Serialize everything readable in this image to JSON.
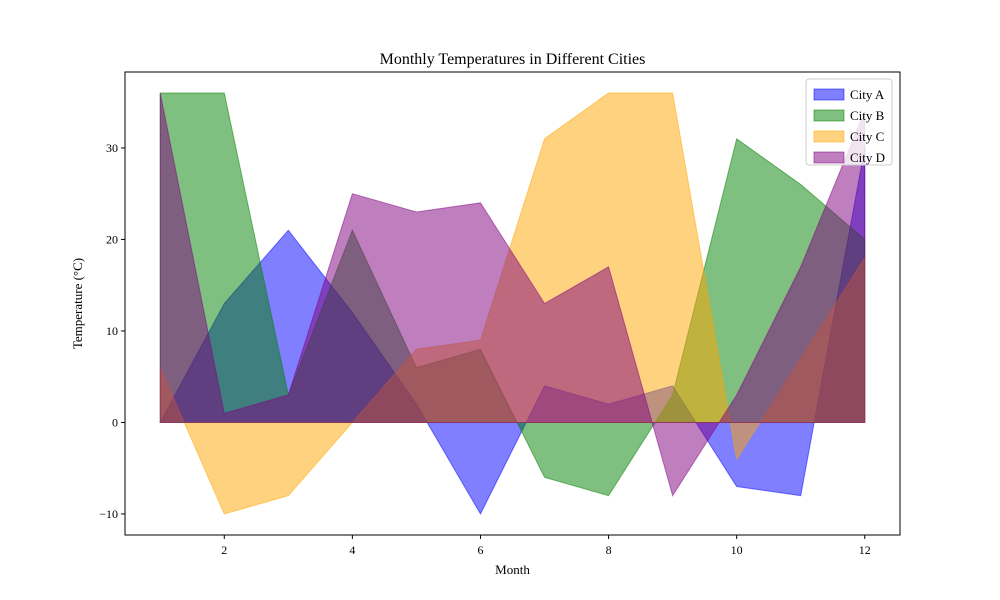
{
  "chart_data": {
    "type": "area",
    "title": "Monthly Temperatures in Different Cities",
    "xlabel": "Month",
    "ylabel": "Temperature (°C)",
    "x": [
      1,
      2,
      3,
      4,
      5,
      6,
      7,
      8,
      9,
      10,
      11,
      12
    ],
    "xlim": [
      0.45,
      12.55
    ],
    "ylim": [
      -12.3,
      38.3
    ],
    "xticks": [
      2,
      4,
      6,
      8,
      10,
      12
    ],
    "yticks": [
      -10,
      0,
      10,
      20,
      30
    ],
    "grid": false,
    "legend_position": "upper right",
    "series": [
      {
        "name": "City A",
        "color": "#0000ff",
        "values": [
          0,
          13,
          21,
          12,
          2,
          -10,
          4,
          2,
          4,
          -7,
          -8,
          30
        ]
      },
      {
        "name": "City B",
        "color": "#008000",
        "values": [
          36,
          36,
          3,
          21,
          6,
          8,
          -6,
          -8,
          3,
          31,
          26,
          20
        ]
      },
      {
        "name": "City C",
        "color": "#ffa500",
        "values": [
          6,
          -10,
          -8,
          0,
          8,
          9,
          31,
          36,
          36,
          -4,
          7,
          18
        ]
      },
      {
        "name": "City D",
        "color": "#800080",
        "values": [
          36,
          1,
          3,
          25,
          23,
          24,
          13,
          17,
          -8,
          3,
          17,
          34
        ]
      }
    ]
  }
}
